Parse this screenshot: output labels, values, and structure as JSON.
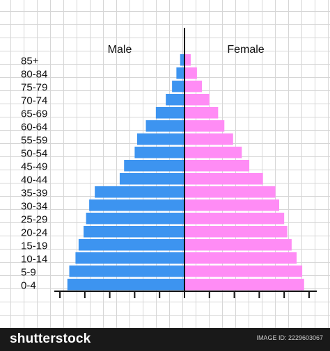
{
  "chart_data": {
    "type": "bar",
    "orientation": "horizontal-population-pyramid",
    "categories": [
      "85+",
      "80-84",
      "75-79",
      "70-74",
      "65-69",
      "60-64",
      "55-59",
      "50-54",
      "45-49",
      "40-44",
      "35-39",
      "30-34",
      "25-29",
      "20-24",
      "15-19",
      "10-14",
      "5-9",
      "0-4"
    ],
    "series": [
      {
        "name": "Male",
        "color": "#3d94f0",
        "values": [
          0.7,
          1.3,
          2.0,
          3.0,
          4.6,
          6.2,
          7.6,
          8.0,
          9.7,
          10.4,
          14.4,
          15.3,
          15.8,
          16.2,
          17.0,
          17.5,
          18.5,
          18.8
        ]
      },
      {
        "name": "Female",
        "color": "#ff8cf5",
        "values": [
          1.0,
          2.0,
          2.8,
          4.0,
          5.4,
          6.4,
          7.8,
          9.2,
          10.4,
          12.6,
          14.6,
          15.2,
          16.0,
          16.5,
          17.2,
          18.0,
          18.9,
          19.2
        ]
      }
    ],
    "xlim": [
      -20,
      20
    ],
    "grid": true,
    "series_labels_position": "top"
  },
  "footer": {
    "brand": "shutterstock",
    "image_id": "IMAGE ID: 2229603067"
  }
}
